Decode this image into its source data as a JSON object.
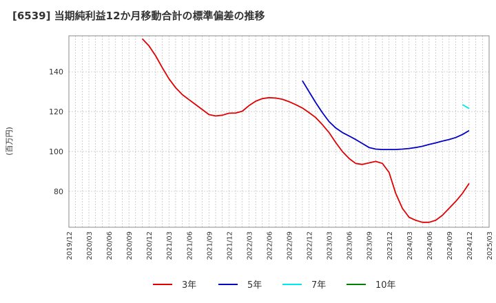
{
  "chart_data": {
    "type": "line",
    "title": "[6539]  当期純利益12か月移動合計の標準偏差の推移",
    "xlabel": "",
    "ylabel": "(百万円)",
    "ylim": [
      62,
      158
    ],
    "yticks": [
      80,
      100,
      120,
      140
    ],
    "xlim": [
      "2019/12",
      "2025/03"
    ],
    "xticks": [
      "2019/12",
      "2020/03",
      "2020/06",
      "2020/09",
      "2020/12",
      "2021/03",
      "2021/06",
      "2021/09",
      "2021/12",
      "2022/03",
      "2022/06",
      "2022/09",
      "2022/12",
      "2023/03",
      "2023/06",
      "2023/09",
      "2023/12",
      "2024/03",
      "2024/06",
      "2024/09",
      "2024/12",
      "2025/03"
    ],
    "grid": true,
    "legend_position": "bottom",
    "series": [
      {
        "name": "3年",
        "color": "#e00000",
        "x": [
          "2020/11",
          "2020/12",
          "2021/01",
          "2021/02",
          "2021/03",
          "2021/04",
          "2021/05",
          "2021/06",
          "2021/07",
          "2021/08",
          "2021/09",
          "2021/10",
          "2021/11",
          "2021/12",
          "2022/01",
          "2022/02",
          "2022/03",
          "2022/04",
          "2022/05",
          "2022/06",
          "2022/07",
          "2022/08",
          "2022/09",
          "2022/10",
          "2022/11",
          "2022/12",
          "2023/01",
          "2023/02",
          "2023/03",
          "2023/04",
          "2023/05",
          "2023/06",
          "2023/07",
          "2023/08",
          "2023/09",
          "2023/10",
          "2023/11",
          "2023/12",
          "2024/01",
          "2024/02",
          "2024/03",
          "2024/04",
          "2024/05",
          "2024/06",
          "2024/07",
          "2024/08",
          "2024/09",
          "2024/10",
          "2024/11",
          "2024/12"
        ],
        "values": [
          156.5,
          153,
          148,
          142,
          136.5,
          132,
          128.5,
          126,
          123.5,
          121,
          118.5,
          117.8,
          118.2,
          119.2,
          119.3,
          120.2,
          123,
          125.2,
          126.5,
          127,
          126.8,
          126.2,
          125,
          123.5,
          121.8,
          119.5,
          117,
          113.5,
          109.5,
          104.5,
          100,
          96.5,
          94,
          93.5,
          94.3,
          95,
          94,
          89.5,
          79,
          71.5,
          67,
          65.5,
          64.5,
          64.5,
          65.5,
          68,
          71.5,
          75,
          79,
          84
        ]
      },
      {
        "name": "5年",
        "color": "#0000c8",
        "x": [
          "2022/11",
          "2022/12",
          "2023/01",
          "2023/02",
          "2023/03",
          "2023/04",
          "2023/05",
          "2023/06",
          "2023/07",
          "2023/08",
          "2023/09",
          "2023/10",
          "2023/11",
          "2023/12",
          "2024/01",
          "2024/02",
          "2024/03",
          "2024/04",
          "2024/05",
          "2024/06",
          "2024/07",
          "2024/08",
          "2024/09",
          "2024/10",
          "2024/11",
          "2024/12"
        ],
        "values": [
          135.5,
          130,
          124.5,
          119.5,
          115,
          111.8,
          109.5,
          107.8,
          106,
          104,
          102,
          101.2,
          101,
          101,
          101,
          101.2,
          101.5,
          102,
          102.6,
          103.5,
          104.3,
          105.2,
          106,
          107,
          108.5,
          110.5
        ]
      },
      {
        "name": "7年",
        "color": "#00e8e8",
        "x": [
          "2024/11",
          "2024/12"
        ],
        "values": [
          123.5,
          121.5
        ]
      },
      {
        "name": "10年",
        "color": "#008000",
        "x": [],
        "values": []
      }
    ]
  }
}
